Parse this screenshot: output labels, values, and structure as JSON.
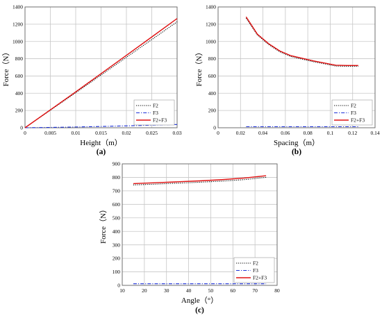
{
  "chart_data": [
    {
      "panel_label": "(a)",
      "type": "line",
      "xlabel": "Height（m）",
      "ylabel": "Force（N）",
      "xlim": [
        0,
        0.03
      ],
      "ylim": [
        0,
        1400
      ],
      "xticks": [
        "0",
        "0.005",
        "0.01",
        "0.015",
        "0.02",
        "0.025",
        "0.03"
      ],
      "yticks": [
        "0",
        "200",
        "400",
        "600",
        "800",
        "1000",
        "1200",
        "1400"
      ],
      "grid": true,
      "legend": "bottom-right",
      "series": [
        {
          "name": "F2",
          "color": "#000000",
          "style": "dotted",
          "x": [
            0,
            0.005,
            0.01,
            0.015,
            0.02,
            0.025,
            0.03
          ],
          "y": [
            0,
            203,
            406,
            611,
            817,
            1022,
            1228
          ]
        },
        {
          "name": "F3",
          "color": "#1a2fd6",
          "style": "dashdot",
          "x": [
            0,
            0.005,
            0.01,
            0.015,
            0.02,
            0.025,
            0.03
          ],
          "y": [
            0,
            4,
            9,
            15,
            22,
            30,
            38
          ]
        },
        {
          "name": "F2+F3",
          "color": "#e01010",
          "style": "solid",
          "x": [
            0,
            0.005,
            0.01,
            0.015,
            0.02,
            0.025,
            0.03
          ],
          "y": [
            0,
            208,
            416,
            627,
            839,
            1052,
            1266
          ]
        }
      ]
    },
    {
      "panel_label": "(b)",
      "type": "line",
      "xlabel": "Spacing（m）",
      "ylabel": "Force（N）",
      "xlim": [
        0,
        0.14
      ],
      "ylim": [
        0,
        1400
      ],
      "xticks": [
        "0",
        "0.02",
        "0.04",
        "0.06",
        "0.08",
        "0.1",
        "0.12",
        "0.14"
      ],
      "yticks": [
        "0",
        "200",
        "400",
        "600",
        "800",
        "1000",
        "1200",
        "1400"
      ],
      "grid": true,
      "legend": "bottom-right",
      "series": [
        {
          "name": "F2",
          "color": "#000000",
          "style": "dotted",
          "x": [
            0.025,
            0.035,
            0.045,
            0.055,
            0.065,
            0.075,
            0.085,
            0.095,
            0.105,
            0.115,
            0.125
          ],
          "y": [
            1270,
            1075,
            965,
            880,
            825,
            795,
            765,
            740,
            715,
            712,
            712
          ]
        },
        {
          "name": "F3",
          "color": "#1a2fd6",
          "style": "dashdot",
          "x": [
            0.025,
            0.125
          ],
          "y": [
            12,
            12
          ]
        },
        {
          "name": "F2+F3",
          "color": "#e01010",
          "style": "solid",
          "x": [
            0.025,
            0.035,
            0.045,
            0.055,
            0.065,
            0.075,
            0.085,
            0.095,
            0.105,
            0.115,
            0.125
          ],
          "y": [
            1285,
            1085,
            975,
            890,
            835,
            805,
            775,
            750,
            725,
            722,
            722
          ]
        }
      ]
    },
    {
      "panel_label": "(c)",
      "type": "line",
      "xlabel": "Angle（°）",
      "ylabel": "Force（N）",
      "xlim": [
        10,
        80
      ],
      "ylim": [
        0,
        900
      ],
      "xticks": [
        "10",
        "20",
        "30",
        "40",
        "50",
        "60",
        "70",
        "80"
      ],
      "yticks": [
        "0",
        "100",
        "200",
        "300",
        "400",
        "500",
        "600",
        "700",
        "800",
        "900"
      ],
      "grid": true,
      "legend": "bottom-right",
      "series": [
        {
          "name": "F2",
          "color": "#000000",
          "style": "dotted",
          "x": [
            15,
            25,
            35,
            45,
            55,
            65,
            75
          ],
          "y": [
            744,
            750,
            757,
            764,
            772,
            783,
            800
          ]
        },
        {
          "name": "F3",
          "color": "#1a2fd6",
          "style": "dashdot",
          "x": [
            15,
            75
          ],
          "y": [
            12,
            12
          ]
        },
        {
          "name": "F2+F3",
          "color": "#e01010",
          "style": "solid",
          "x": [
            15,
            25,
            35,
            45,
            55,
            65,
            75
          ],
          "y": [
            754,
            760,
            767,
            774,
            783,
            795,
            812
          ]
        }
      ]
    }
  ]
}
